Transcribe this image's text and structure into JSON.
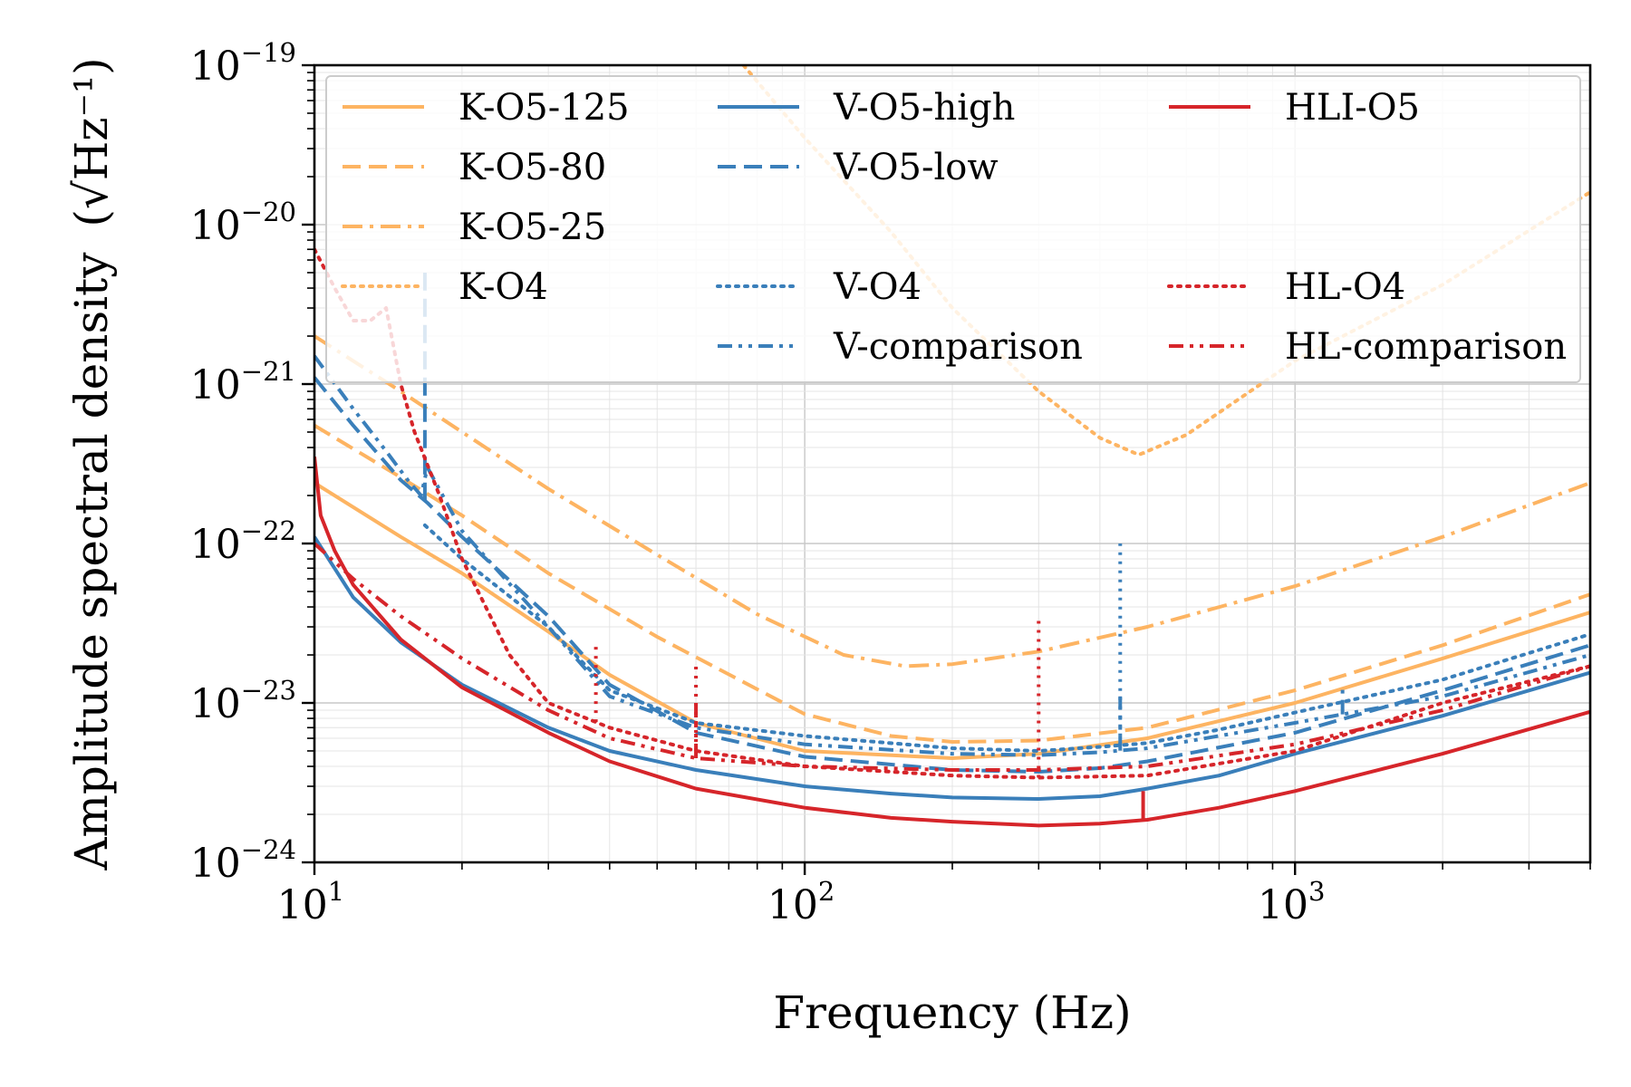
{
  "chart_data": {
    "type": "line",
    "title": "",
    "xlabel": "Frequency (Hz)",
    "ylabel": "Amplitude spectral density",
    "ylabel_unit": "(√Hz⁻¹)",
    "x_scale": "log",
    "y_scale": "log",
    "xlim": [
      10,
      4000
    ],
    "ylim": [
      1e-24,
      1e-19
    ],
    "grid": "on (major and minor)",
    "legend_position": "top (3 columns)",
    "x_ticks": [
      {
        "value": 10,
        "base": "10",
        "exp": "1"
      },
      {
        "value": 100,
        "base": "10",
        "exp": "2"
      },
      {
        "value": 1000,
        "base": "10",
        "exp": "3"
      }
    ],
    "y_ticks": [
      {
        "value": 1e-19,
        "base": "10",
        "exp": "−19"
      },
      {
        "value": 1e-20,
        "base": "10",
        "exp": "−20"
      },
      {
        "value": 1e-21,
        "base": "10",
        "exp": "−21"
      },
      {
        "value": 1e-22,
        "base": "10",
        "exp": "−22"
      },
      {
        "value": 1e-23,
        "base": "10",
        "exp": "−23"
      },
      {
        "value": 1e-24,
        "base": "10",
        "exp": "−24"
      }
    ],
    "series": [
      {
        "name": "K-O5-125",
        "color": "#fdb462",
        "style": "solid",
        "x": [
          10,
          15,
          20,
          30,
          40,
          60,
          100,
          200,
          300,
          500,
          1000,
          2000,
          4000
        ],
        "y": [
          2.4e-22,
          1.1e-22,
          6.5e-23,
          2.8e-23,
          1.5e-23,
          7.5e-24,
          5e-24,
          4.5e-24,
          4.8e-24,
          6e-24,
          1e-23,
          1.9e-23,
          3.7e-23
        ]
      },
      {
        "name": "K-O5-80",
        "color": "#fdb462",
        "style": "dashed",
        "x": [
          10,
          15,
          20,
          30,
          50,
          100,
          150,
          200,
          300,
          500,
          1000,
          2000,
          4000
        ],
        "y": [
          5.5e-22,
          2.6e-22,
          1.5e-22,
          6.5e-23,
          2.6e-23,
          8.5e-24,
          6.2e-24,
          5.7e-24,
          5.8e-24,
          7e-24,
          1.2e-23,
          2.3e-23,
          4.8e-23
        ]
      },
      {
        "name": "K-O5-25",
        "color": "#fdb462",
        "style": "dashdot",
        "x": [
          10,
          15,
          20,
          30,
          50,
          80,
          120,
          160,
          200,
          300,
          500,
          1000,
          2000,
          4000
        ],
        "y": [
          2e-21,
          9e-22,
          5e-22,
          2.2e-22,
          8.5e-23,
          3.6e-23,
          2e-23,
          1.7e-23,
          1.75e-23,
          2.1e-23,
          3e-23,
          5.4e-23,
          1.1e-22,
          2.4e-22
        ]
      },
      {
        "name": "K-O4",
        "color": "#fdb462",
        "style": "dotted",
        "x": [
          75,
          100,
          150,
          200,
          300,
          400,
          480,
          600,
          1000,
          2000,
          4000
        ],
        "y": [
          1e-19,
          3.5e-20,
          9e-21,
          3e-21,
          9e-22,
          4.6e-22,
          3.6e-22,
          4.8e-22,
          1.4e-21,
          4.2e-21,
          1.6e-20
        ],
        "lines": [
          {
            "f": 490,
            "peak": 3.6e-22
          }
        ]
      },
      {
        "name": "V-O5-high",
        "color": "#3a7fba",
        "style": "solid",
        "x": [
          10,
          12,
          15,
          20,
          30,
          40,
          60,
          100,
          150,
          200,
          300,
          400,
          500,
          700,
          1000,
          2000,
          4000
        ],
        "y": [
          1.1e-22,
          4.6e-23,
          2.4e-23,
          1.3e-23,
          7e-24,
          5e-24,
          3.8e-24,
          3e-24,
          2.7e-24,
          2.55e-24,
          2.5e-24,
          2.6e-24,
          2.9e-24,
          3.5e-24,
          4.8e-24,
          8.3e-24,
          1.55e-23
        ]
      },
      {
        "name": "V-O5-low",
        "color": "#3a7fba",
        "style": "dashed",
        "x": [
          10,
          12,
          15,
          17,
          20,
          30,
          40,
          60,
          100,
          200,
          300,
          400,
          500,
          1000,
          2000,
          4000
        ],
        "y": [
          1.1e-21,
          5.5e-22,
          2.5e-22,
          1.8e-22,
          1.1e-22,
          3.5e-23,
          1.3e-23,
          6.5e-24,
          4.6e-24,
          3.8e-24,
          3.7e-24,
          3.9e-24,
          4.3e-24,
          6.5e-24,
          1.2e-23,
          2.3e-23
        ],
        "lines": [
          {
            "f": 16.8,
            "peak": 5e-21
          }
        ]
      },
      {
        "name": "V-O4",
        "color": "#3a7fba",
        "style": "dotted",
        "x": [
          16.8,
          20,
          30,
          40,
          60,
          100,
          200,
          300,
          400,
          500,
          700,
          1000,
          2000,
          4000
        ],
        "y": [
          1.3e-22,
          8e-23,
          3e-23,
          1.2e-23,
          7.5e-24,
          6.2e-24,
          5.2e-24,
          5e-24,
          5.3e-24,
          5.6e-24,
          6.8e-24,
          8.7e-24,
          1.4e-23,
          2.7e-23
        ],
        "lines": [
          {
            "f": 440,
            "peak": 1e-22
          }
        ]
      },
      {
        "name": "V-comparison",
        "color": "#3a7fba",
        "style": "dashdotdot",
        "x": [
          10,
          12,
          14,
          15.5,
          16.5,
          17,
          20,
          30,
          40,
          60,
          100,
          200,
          300,
          400,
          500,
          1000,
          2000,
          4000
        ],
        "y": [
          1.5e-21,
          7e-22,
          3.8e-22,
          2.5e-22,
          2e-22,
          3e-22,
          1.2e-22,
          3e-23,
          1.1e-23,
          7e-24,
          5.5e-24,
          4.8e-24,
          4.7e-24,
          4.9e-24,
          5.2e-24,
          7.5e-24,
          1.1e-23,
          2e-23
        ],
        "lines": [
          {
            "f": 440,
            "peak": 1.1e-23
          },
          {
            "f": 1250,
            "peak": 1.3e-23
          }
        ]
      },
      {
        "name": "HLI-O5",
        "color": "#d6252a",
        "style": "solid",
        "x": [
          10,
          10.3,
          11,
          12,
          15,
          20,
          30,
          40,
          60,
          100,
          150,
          200,
          300,
          400,
          500,
          700,
          1000,
          2000,
          4000
        ],
        "y": [
          3.5e-22,
          1.5e-22,
          9e-23,
          5.5e-23,
          2.5e-23,
          1.25e-23,
          6.5e-24,
          4.3e-24,
          2.9e-24,
          2.2e-24,
          1.9e-24,
          1.8e-24,
          1.7e-24,
          1.75e-24,
          1.85e-24,
          2.2e-24,
          2.8e-24,
          4.8e-24,
          8.8e-24
        ],
        "lines": [
          {
            "f": 490,
            "peak": 2.8e-24
          }
        ]
      },
      {
        "name": "HL-O4",
        "color": "#d6252a",
        "style": "dotted",
        "x": [
          10,
          11,
          12,
          13,
          14,
          15,
          16,
          18,
          20,
          25,
          30,
          40,
          60,
          100,
          200,
          300,
          500,
          1000,
          2000,
          4000
        ],
        "y": [
          7e-21,
          4e-21,
          2.5e-21,
          2.5e-21,
          3e-21,
          1e-21,
          5e-22,
          2e-22,
          8e-23,
          2e-23,
          1e-23,
          7e-24,
          5e-24,
          4e-24,
          3.5e-24,
          3.4e-24,
          3.5e-24,
          5e-24,
          1e-23,
          1.7e-23
        ],
        "lines": [
          {
            "f": 37.5,
            "peak": 2.4e-23
          },
          {
            "f": 60,
            "peak": 1.8e-23
          },
          {
            "f": 300,
            "peak": 3.5e-23
          }
        ]
      },
      {
        "name": "HL-comparison",
        "color": "#d6252a",
        "style": "dashdotdot",
        "x": [
          10,
          12,
          15,
          20,
          30,
          40,
          60,
          100,
          200,
          300,
          500,
          1000,
          2000,
          4000
        ],
        "y": [
          1e-22,
          6e-23,
          3.5e-23,
          1.9e-23,
          9e-24,
          6e-24,
          4.5e-24,
          4e-24,
          3.8e-24,
          3.8e-24,
          4e-24,
          5.5e-24,
          9e-24,
          1.7e-23
        ],
        "lines": [
          {
            "f": 60,
            "peak": 1e-23
          }
        ]
      }
    ]
  }
}
